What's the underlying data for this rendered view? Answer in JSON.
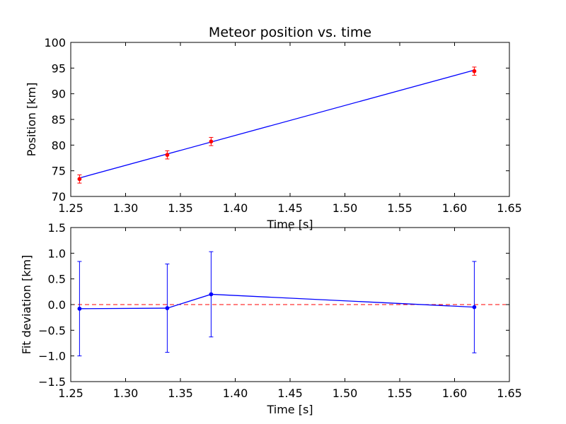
{
  "chart_data": [
    {
      "type": "line",
      "title": "Meteor position vs. time",
      "xlabel": "Time [s]",
      "ylabel": "Position [km]",
      "xlim": [
        1.25,
        1.65
      ],
      "ylim": [
        70,
        100
      ],
      "xticks": [
        "1.25",
        "1.30",
        "1.35",
        "1.40",
        "1.45",
        "1.50",
        "1.55",
        "1.60",
        "1.65"
      ],
      "yticks": [
        "70",
        "75",
        "80",
        "85",
        "90",
        "95",
        "100"
      ],
      "grid": false,
      "series": [
        {
          "style": "line",
          "color": "#0000ff",
          "x": [
            1.258,
            1.618
          ],
          "y": [
            73.6,
            94.6
          ]
        },
        {
          "style": "errorbar-points",
          "color": "#ff0000",
          "x": [
            1.258,
            1.338,
            1.378,
            1.618
          ],
          "y": [
            73.4,
            78.1,
            80.7,
            94.4
          ],
          "yerr": [
            0.8,
            0.8,
            0.8,
            0.8
          ]
        }
      ]
    },
    {
      "type": "line",
      "title": "",
      "xlabel": "Time [s]",
      "ylabel": "Fit deviation [km]",
      "xlim": [
        1.25,
        1.65
      ],
      "ylim": [
        -1.5,
        1.5
      ],
      "xticks": [
        "1.25",
        "1.30",
        "1.35",
        "1.40",
        "1.45",
        "1.50",
        "1.55",
        "1.60",
        "1.65"
      ],
      "yticks": [
        "−1.5",
        "−1.0",
        "−0.5",
        "0.0",
        "0.5",
        "1.0",
        "1.5"
      ],
      "grid": false,
      "reference_line": {
        "y": 0,
        "color": "#ff0000",
        "style": "dashed"
      },
      "series": [
        {
          "style": "line-errorbar",
          "color": "#0000ff",
          "x": [
            1.258,
            1.338,
            1.378,
            1.618
          ],
          "y": [
            -0.08,
            -0.07,
            0.2,
            -0.05
          ],
          "yerr": [
            0.92,
            0.86,
            0.83,
            0.89
          ]
        }
      ]
    }
  ]
}
